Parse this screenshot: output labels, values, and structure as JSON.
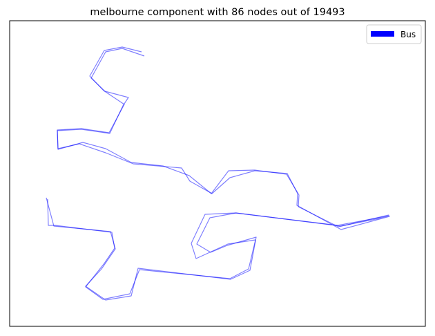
{
  "chart_data": {
    "type": "line",
    "title": "melbourne component with 86 nodes out of 19493",
    "xlabel": "",
    "ylabel": "",
    "axes_ticks": false,
    "grid": false,
    "legend": {
      "placement": "top-right",
      "entries": [
        {
          "label": "Bus",
          "color": "#0000ff"
        }
      ]
    },
    "series": [
      {
        "name": "Bus",
        "color": "#0000ff",
        "alpha": 0.5,
        "paths": [
          [
            [
              205,
              75
            ],
            [
              177,
              68
            ],
            [
              151,
              73
            ],
            [
              130,
              110
            ],
            [
              150,
              131
            ],
            [
              180,
              151
            ],
            [
              158,
              192
            ],
            [
              118,
              186
            ],
            [
              83,
              188
            ],
            [
              84,
              216
            ],
            [
              120,
              206
            ],
            [
              153,
              215
            ],
            [
              190,
              235
            ],
            [
              236,
              240
            ],
            [
              274,
              254
            ],
            [
              306,
              280
            ],
            [
              331,
              247
            ],
            [
              369,
              246
            ],
            [
              415,
              252
            ],
            [
              433,
              282
            ],
            [
              432,
              299
            ],
            [
              490,
              328
            ],
            [
              563,
              311
            ]
          ],
          [
            [
              209,
              81
            ],
            [
              177,
              70
            ],
            [
              153,
              75
            ],
            [
              132,
              113
            ],
            [
              152,
              132
            ],
            [
              186,
              141
            ],
            [
              178,
              153
            ],
            [
              159,
              193
            ],
            [
              118,
              187
            ],
            [
              83,
              189
            ],
            [
              84,
              215
            ],
            [
              115,
              208
            ],
            [
              153,
              221
            ],
            [
              193,
              237
            ],
            [
              263,
              243
            ],
            [
              275,
              262
            ],
            [
              307,
              280
            ],
            [
              333,
              257
            ],
            [
              369,
              247
            ],
            [
              416,
              251
            ],
            [
              431,
              280
            ],
            [
              430,
              297
            ],
            [
              494,
              332
            ],
            [
              564,
              313
            ],
            [
              494,
              327
            ],
            [
              342,
              308
            ],
            [
              304,
              315
            ],
            [
              285,
              353
            ],
            [
              305,
              365
            ],
            [
              329,
              355
            ],
            [
              371,
              343
            ],
            [
              362,
              391
            ],
            [
              334,
              404
            ],
            [
              200,
              388
            ],
            [
              190,
              428
            ],
            [
              153,
              434
            ],
            [
              124,
              414
            ],
            [
              147,
              389
            ],
            [
              167,
              360
            ],
            [
              160,
              335
            ],
            [
              78,
              327
            ],
            [
              67,
              286
            ]
          ],
          [
            [
              564,
              312
            ],
            [
              489,
              326
            ],
            [
              341,
              308
            ],
            [
              297,
              310
            ],
            [
              277,
              352
            ],
            [
              284,
              374
            ],
            [
              330,
              353
            ],
            [
              370,
              347
            ],
            [
              360,
              389
            ],
            [
              333,
              403
            ],
            [
              202,
              390
            ],
            [
              188,
              425
            ],
            [
              149,
              433
            ],
            [
              124,
              415
            ],
            [
              151,
              381
            ],
            [
              166,
              359
            ],
            [
              162,
              336
            ],
            [
              80,
              326
            ],
            [
              70,
              326
            ],
            [
              69,
              288
            ]
          ]
        ]
      }
    ]
  }
}
